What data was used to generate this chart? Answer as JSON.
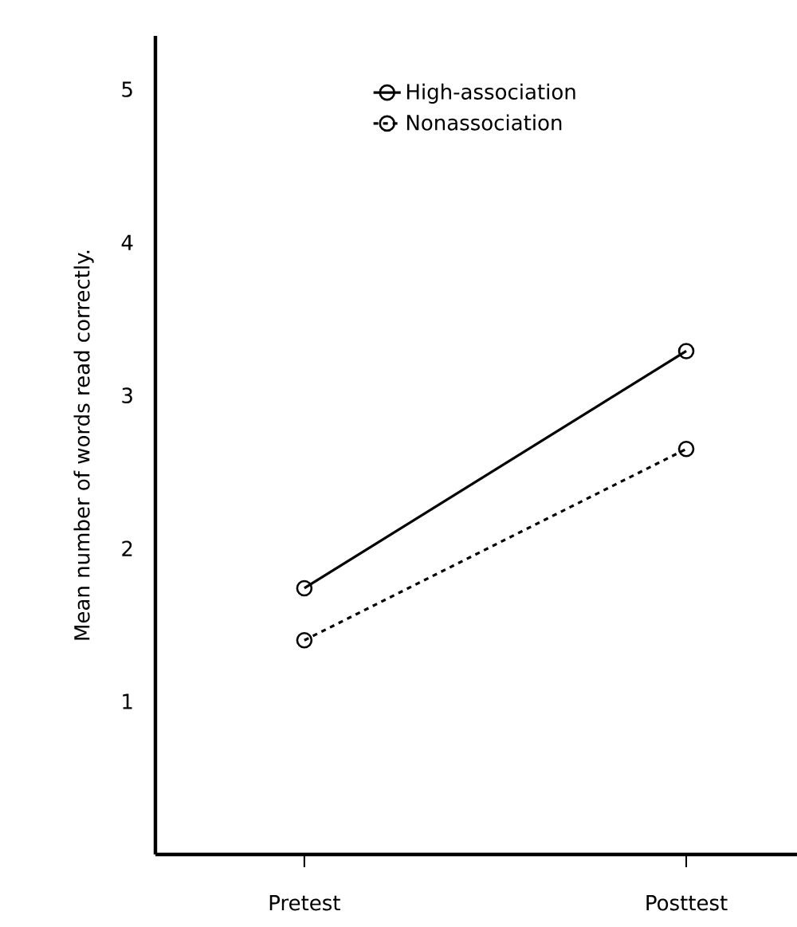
{
  "chart_data": {
    "type": "line",
    "ylabel": "Mean number of words read correctly.",
    "categories": [
      "Pretest",
      "Posttest"
    ],
    "series": [
      {
        "name": "High-association",
        "color": "#000000",
        "line_style": "solid",
        "values": [
          1.74,
          3.29
        ]
      },
      {
        "name": "Nonassociation",
        "color": "#000000",
        "line_style": "dashed",
        "values": [
          1.4,
          2.65
        ]
      }
    ],
    "ylim": [
      0,
      5.35
    ],
    "yticks": [
      1,
      2,
      3,
      4,
      5
    ],
    "marker": "circle",
    "legend": "top right"
  }
}
